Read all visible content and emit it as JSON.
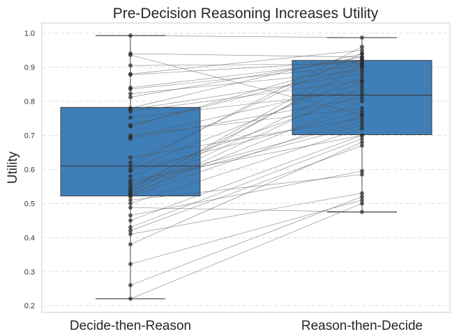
{
  "chart_data": {
    "type": "box",
    "title": "Pre-Decision Reasoning Increases Utility",
    "xlabel": "",
    "ylabel": "Utility",
    "ylim": [
      0.18,
      1.03
    ],
    "yticks": [
      0.2,
      0.3,
      0.4,
      0.5,
      0.6,
      0.7,
      0.8,
      0.9,
      1.0
    ],
    "ytick_labels": [
      "0.2",
      "0.3",
      "0.4",
      "0.5",
      "0.6",
      "0.7",
      "0.8",
      "0.9",
      "1.0"
    ],
    "grid": "horizontal dashed",
    "box_color": "#3f7eb7",
    "point_color": "#2b2b2b",
    "line_color": "#555555",
    "categories": [
      "Decide-then-Reason",
      "Reason-then-Decide"
    ],
    "boxes": [
      {
        "whisker_low": 0.22,
        "q1": 0.522,
        "median": 0.61,
        "q3": 0.782,
        "whisker_high": 0.993
      },
      {
        "whisker_low": 0.475,
        "q1": 0.702,
        "median": 0.818,
        "q3": 0.92,
        "whisker_high": 0.987
      }
    ],
    "pairs": [
      [
        0.993,
        0.987
      ],
      [
        0.94,
        0.93
      ],
      [
        0.936,
        0.76
      ],
      [
        0.905,
        0.91
      ],
      [
        0.88,
        0.95
      ],
      [
        0.878,
        0.918
      ],
      [
        0.84,
        0.92
      ],
      [
        0.836,
        0.905
      ],
      [
        0.822,
        0.89
      ],
      [
        0.812,
        0.93
      ],
      [
        0.78,
        0.94
      ],
      [
        0.776,
        0.88
      ],
      [
        0.77,
        0.86
      ],
      [
        0.752,
        0.83
      ],
      [
        0.73,
        0.9
      ],
      [
        0.726,
        0.92
      ],
      [
        0.7,
        0.78
      ],
      [
        0.695,
        0.85
      ],
      [
        0.69,
        0.81
      ],
      [
        0.635,
        0.75
      ],
      [
        0.62,
        0.94
      ],
      [
        0.61,
        0.96
      ],
      [
        0.6,
        0.87
      ],
      [
        0.595,
        0.77
      ],
      [
        0.58,
        0.82
      ],
      [
        0.568,
        0.7
      ],
      [
        0.56,
        0.74
      ],
      [
        0.553,
        0.73
      ],
      [
        0.546,
        0.9
      ],
      [
        0.54,
        0.925
      ],
      [
        0.535,
        0.86
      ],
      [
        0.53,
        0.91
      ],
      [
        0.527,
        0.8
      ],
      [
        0.524,
        0.84
      ],
      [
        0.52,
        0.76
      ],
      [
        0.51,
        0.585
      ],
      [
        0.5,
        0.72
      ],
      [
        0.488,
        0.475
      ],
      [
        0.465,
        0.595
      ],
      [
        0.45,
        0.7
      ],
      [
        0.43,
        0.69
      ],
      [
        0.42,
        0.67
      ],
      [
        0.41,
        0.53
      ],
      [
        0.38,
        0.68
      ],
      [
        0.322,
        0.51
      ],
      [
        0.26,
        0.52
      ],
      [
        0.22,
        0.5
      ]
    ]
  }
}
